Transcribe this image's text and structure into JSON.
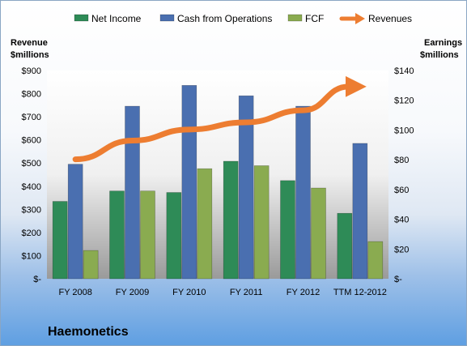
{
  "chart_data": {
    "type": "bar",
    "title": "Haemonetics",
    "categories": [
      "FY 2008",
      "FY 2009",
      "FY 2010",
      "FY 2011",
      "FY 2012",
      "TTM 12-2012"
    ],
    "left_axis": {
      "label_line1": "Revenue",
      "label_line2": "$millions",
      "ylim": [
        0,
        900
      ],
      "ticks": [
        0,
        100,
        200,
        300,
        400,
        500,
        600,
        700,
        800,
        900
      ],
      "tick_labels": [
        "$-",
        "$100",
        "$200",
        "$300",
        "$400",
        "$500",
        "$600",
        "$700",
        "$800",
        "$900"
      ]
    },
    "right_axis": {
      "label_line1": "Earnings",
      "label_line2": "$millions",
      "ylim": [
        0,
        140
      ],
      "ticks": [
        0,
        20,
        40,
        60,
        80,
        100,
        120,
        140
      ],
      "tick_labels": [
        "$-",
        "$20",
        "$40",
        "$60",
        "$80",
        "$100",
        "$120",
        "$140"
      ]
    },
    "series": [
      {
        "name": "Net Income",
        "type": "bar",
        "axis": "right",
        "color": "#2e8b57",
        "values": [
          52,
          59,
          58,
          79,
          66,
          44
        ]
      },
      {
        "name": "Cash from Operations",
        "type": "bar",
        "axis": "right",
        "color": "#4a6fb0",
        "values": [
          77,
          116,
          130,
          123,
          116,
          91
        ]
      },
      {
        "name": "FCF",
        "type": "bar",
        "axis": "right",
        "color": "#8aab50",
        "values": [
          19,
          59,
          74,
          76,
          61,
          25
        ]
      },
      {
        "name": "Revenues",
        "type": "line",
        "axis": "left",
        "color": "#ed7d31",
        "values": [
          516,
          597,
          645,
          676,
          728,
          848
        ]
      }
    ],
    "legend_position": "top",
    "grid": false
  }
}
